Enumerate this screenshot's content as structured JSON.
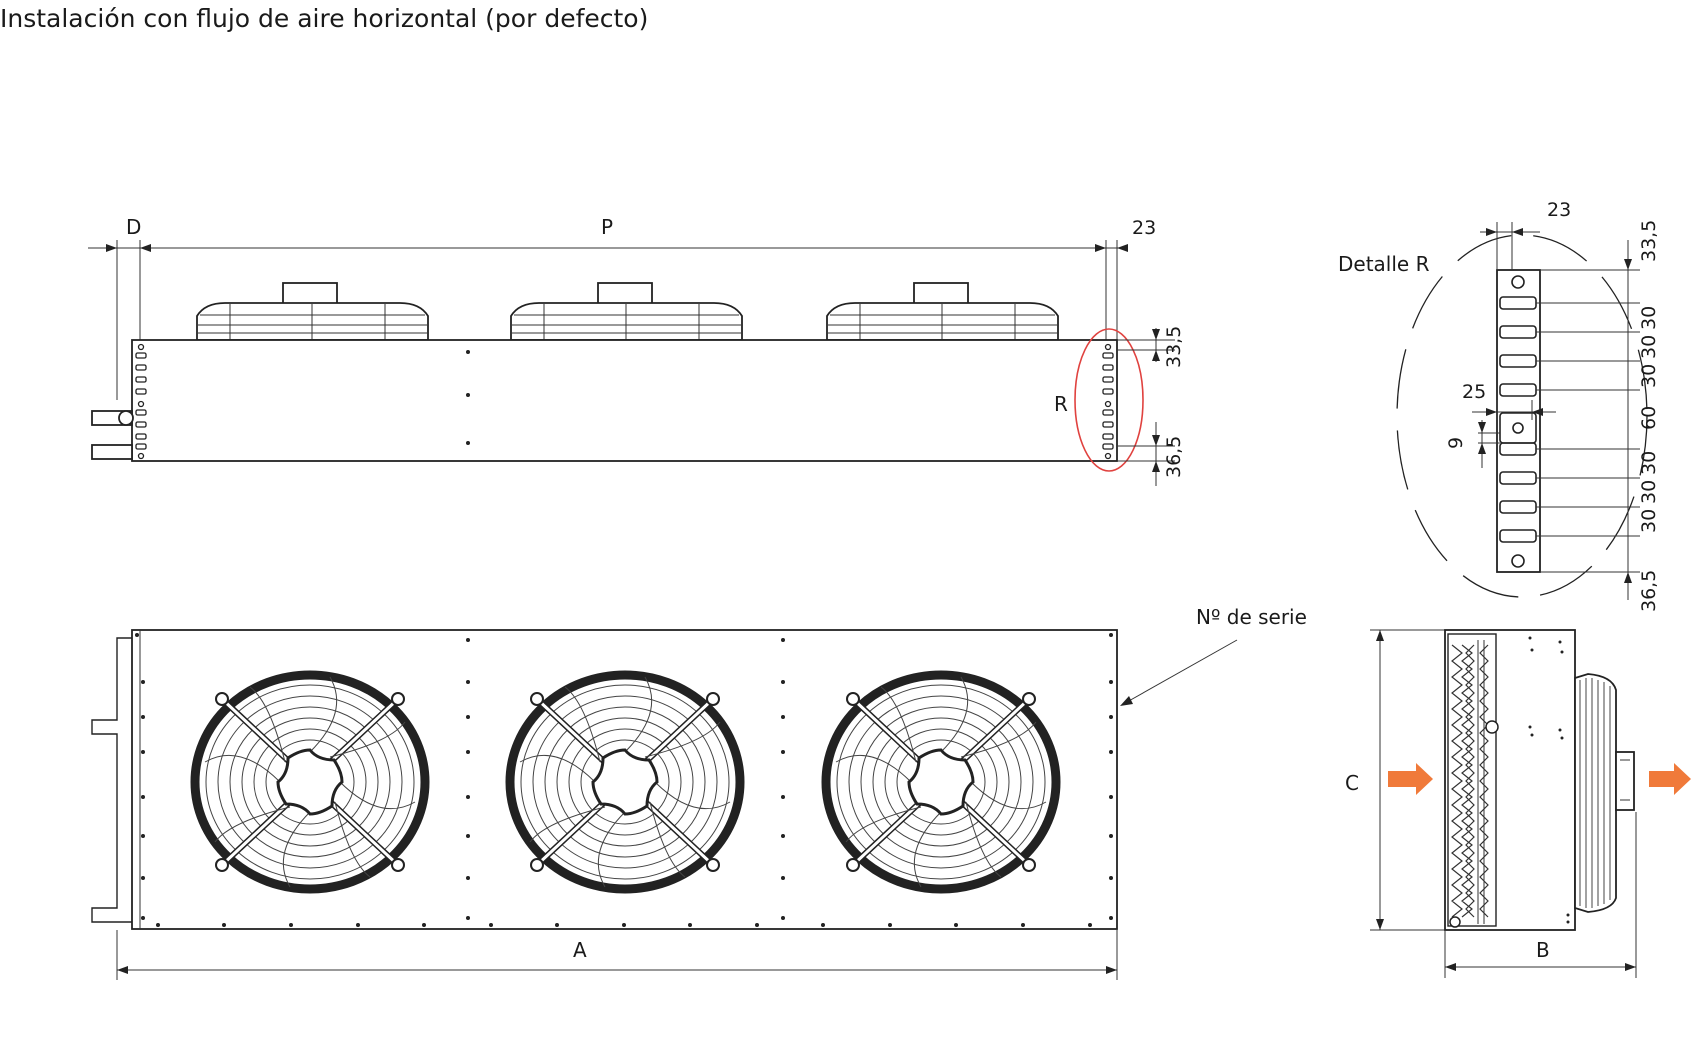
{
  "title": "Instalación con flujo de aire horizontal (por defecto)",
  "labels": {
    "D": "D",
    "P": "P",
    "A": "A",
    "B": "B",
    "C": "C",
    "R": "R",
    "detail": "Detalle R",
    "serial": "Nº de serie"
  },
  "dims": {
    "top_23": "23",
    "side_33_5": "33,5",
    "side_36_5": "36,5",
    "detail_23": "23",
    "detail_33_5": "33,5",
    "detail_36_5": "36,5",
    "detail_25": "25",
    "detail_9": "9",
    "spacings": [
      "30",
      "30",
      "30",
      "60",
      "30",
      "30",
      "30"
    ]
  },
  "colors": {
    "line": "#222222",
    "highlight": "#e0423f",
    "arrow": "#f07a3a"
  },
  "fans": 3
}
